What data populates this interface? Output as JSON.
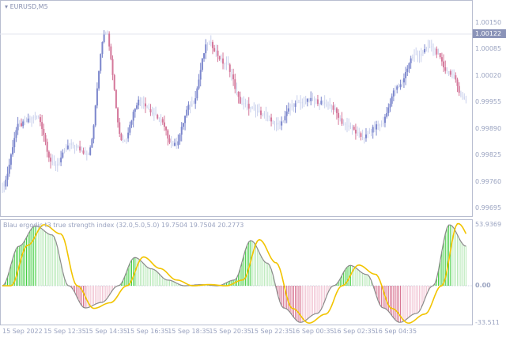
{
  "window": {
    "symbol_title": "EURUSD,M5",
    "menu_icon": "triangle-down-icon"
  },
  "colors": {
    "bull_candle": "#7b86cc",
    "bear_candle": "#d4779a",
    "doji_candle": "#c9d0ec",
    "hist_pos": "#3fcc3f",
    "hist_pos_light": "#b5e8b5",
    "hist_neg": "#d46a8a",
    "signal_line": "#f2c400",
    "tsi_line": "#8c8c8c",
    "grid": "#e8eaf2",
    "axis_text": "#9aa3c0"
  },
  "price_axis": {
    "labels": [
      "1.00150",
      "1.00085",
      "1.00020",
      "0.99955",
      "0.99890",
      "0.99825",
      "0.99760",
      "0.99695"
    ],
    "current_price": "1.00122"
  },
  "indicator": {
    "title": "Blau ergodic t3 true strength index (32.0,5.0,5.0) 19.7504 19.7504 20.2773",
    "axis_labels": {
      "max": "53.9369",
      "zero": "0.00",
      "min": "-33.511"
    }
  },
  "time_axis": {
    "labels": [
      "15 Sep 2022",
      "15 Sep 12:35",
      "15 Sep 14:35",
      "15 Sep 16:35",
      "15 Sep 18:35",
      "15 Sep 20:35",
      "15 Sep 22:35",
      "16 Sep 00:35",
      "16 Sep 02:35",
      "16 Sep 04:35"
    ]
  },
  "chart_data": [
    {
      "type": "candlestick",
      "symbol": "EURUSD",
      "timeframe": "M5",
      "ylim": [
        0.9966,
        1.0018
      ],
      "x": [
        "15 Sep 2022",
        "15 Sep 12:35",
        "15 Sep 14:35",
        "15 Sep 16:35",
        "15 Sep 18:35",
        "15 Sep 20:35",
        "15 Sep 22:35",
        "16 Sep 00:35",
        "16 Sep 02:35",
        "16 Sep 04:35"
      ],
      "approx_close_path": [
        0.9975,
        0.999,
        0.9992,
        0.998,
        0.9985,
        0.9983,
        1.0013,
        0.9986,
        0.9996,
        0.9992,
        0.9985,
        0.9995,
        1.001,
        1.0005,
        0.9995,
        0.9993,
        0.999,
        0.9995,
        0.9996,
        0.9995,
        0.999,
        0.9987,
        0.999,
        0.9999,
        1.0007,
        1.0009,
        1.0003,
        0.9996
      ]
    },
    {
      "type": "bar",
      "title": "Blau ergodic t3 true strength index (32.0,5.0,5.0)",
      "ylim": [
        -33.511,
        53.9369
      ],
      "approx_histogram_path": [
        0,
        35,
        53,
        45,
        0,
        -20,
        -15,
        0,
        25,
        15,
        5,
        0,
        1,
        0,
        5,
        40,
        20,
        -20,
        -33,
        -25,
        0,
        18,
        10,
        -20,
        -33,
        -25,
        0,
        54,
        35
      ]
    }
  ]
}
